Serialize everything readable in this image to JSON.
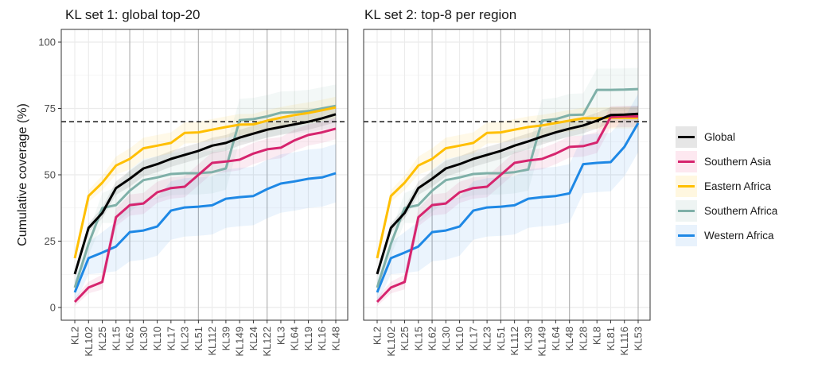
{
  "chart_data": {
    "type": "line",
    "ylabel": "Cumulative coverage (%)",
    "ylim": [
      0,
      100
    ],
    "yticks": [
      0,
      25,
      50,
      75,
      100
    ],
    "threshold": {
      "value": 70,
      "style": "dashed"
    },
    "grid": true,
    "legend": {
      "position": "right",
      "entries": [
        {
          "name": "Global",
          "color": "#000000",
          "fill": "#e6e6e6"
        },
        {
          "name": "Southern Asia",
          "color": "#d6246e",
          "fill": "#fde8f0"
        },
        {
          "name": "Eastern Africa",
          "color": "#ffbf00",
          "fill": "#fff7e0"
        },
        {
          "name": "Southern Africa",
          "color": "#7fb0a8",
          "fill": "#eef4f3"
        },
        {
          "name": "Western Africa",
          "color": "#1e88e5",
          "fill": "#e8f2fc"
        }
      ]
    },
    "panels": [
      {
        "title": "KL set 1: global top-20",
        "categories": [
          "KL2",
          "KL102",
          "KL25",
          "KL15",
          "KL62",
          "KL30",
          "KL10",
          "KL17",
          "KL23",
          "KL51",
          "KL112",
          "KL39",
          "KL149",
          "KL24",
          "KL122",
          "KL3",
          "KL64",
          "KL19",
          "KL16",
          "KL48"
        ],
        "series": [
          {
            "name": "Global",
            "values": [
              12.6,
              30,
              35.6,
              45,
              48.5,
              52.4,
              54,
              56,
              57.5,
              59,
              61,
              62,
              64,
              65.5,
              67,
              68,
              69,
              70,
              71.3,
              72.8
            ],
            "band": 3
          },
          {
            "name": "Southern Asia",
            "values": [
              2.1,
              7.5,
              9.6,
              34,
              38.6,
              39.2,
              43.4,
              45,
              45.5,
              50,
              54.5,
              55,
              55.7,
              58,
              59.6,
              60.2,
              63,
              65,
              66,
              67.4
            ],
            "band": 4
          },
          {
            "name": "Eastern Africa",
            "values": [
              18.6,
              42,
              47,
              53.5,
              56,
              60,
              61,
              62,
              65.8,
              66,
              67,
              68,
              68.9,
              69,
              70.4,
              71.5,
              72.5,
              73.3,
              74.3,
              75.4
            ],
            "band": 4
          },
          {
            "name": "Southern Africa",
            "values": [
              7.5,
              24,
              37.5,
              38.6,
              44,
              48,
              49,
              50.3,
              50.6,
              50.6,
              51,
              52.4,
              70.6,
              71,
              72,
              73.4,
              73.6,
              74,
              75,
              76
            ],
            "band": 8
          },
          {
            "name": "Western Africa",
            "values": [
              5.7,
              18.6,
              20.7,
              23,
              28.4,
              29,
              30.5,
              36.5,
              37.7,
              38,
              38.5,
              41,
              41.6,
              42,
              44.6,
              46.7,
              47.5,
              48.5,
              49,
              50.6
            ],
            "band": 11
          }
        ]
      },
      {
        "title": "KL set 2: top-8 per region",
        "categories": [
          "KL2",
          "KL102",
          "KL25",
          "KL15",
          "KL62",
          "KL30",
          "KL10",
          "KL17",
          "KL23",
          "KL51",
          "KL112",
          "KL39",
          "KL149",
          "KL64",
          "KL48",
          "KL28",
          "KL8",
          "KL81",
          "KL116",
          "KL53"
        ],
        "series": [
          {
            "name": "Global",
            "values": [
              12.6,
              30,
              35.6,
              45,
              48.5,
              52.4,
              54,
              56,
              57.5,
              59,
              61,
              62.6,
              64.4,
              66,
              67.4,
              68.6,
              70.4,
              72.5,
              72.7,
              73
            ],
            "band": 3
          },
          {
            "name": "Southern Asia",
            "values": [
              2.1,
              7.5,
              9.6,
              34,
              38.6,
              39.2,
              43.4,
              45,
              45.5,
              50,
              54.5,
              55.4,
              56,
              58,
              60.5,
              60.8,
              62.2,
              71.8,
              72,
              72
            ],
            "band": 4
          },
          {
            "name": "Eastern Africa",
            "values": [
              18.6,
              42,
              47,
              53.5,
              56,
              60,
              61,
              62,
              65.8,
              66,
              67,
              68,
              68.6,
              69.5,
              70.4,
              71.3,
              71.3,
              71.5,
              71.5,
              71.5
            ],
            "band": 4
          },
          {
            "name": "Southern Africa",
            "values": [
              7.5,
              24,
              37.5,
              38.6,
              44,
              48,
              49,
              50.3,
              50.6,
              50.6,
              51,
              52,
              70.4,
              71,
              72.5,
              72.7,
              82,
              82,
              82.1,
              82.3
            ],
            "band": 8
          },
          {
            "name": "Western Africa",
            "values": [
              5.7,
              18.6,
              20.7,
              23,
              28.4,
              29,
              30.5,
              36.5,
              37.7,
              38,
              38.5,
              41,
              41.6,
              42,
              43,
              54,
              54.5,
              54.8,
              60.5,
              69.5
            ],
            "band": 11
          }
        ]
      }
    ]
  }
}
